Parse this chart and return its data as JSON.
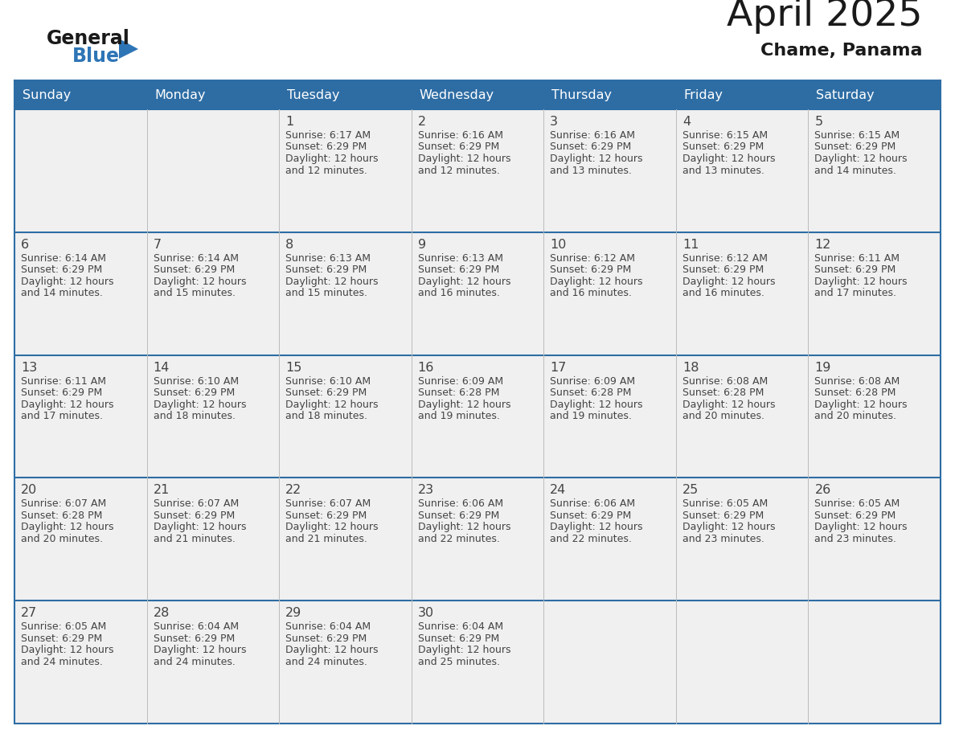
{
  "title": "April 2025",
  "subtitle": "Chame, Panama",
  "days_of_week": [
    "Sunday",
    "Monday",
    "Tuesday",
    "Wednesday",
    "Thursday",
    "Friday",
    "Saturday"
  ],
  "header_bg_color": "#2E6DA4",
  "header_text_color": "#FFFFFF",
  "cell_bg_color": "#F0F0F0",
  "divider_color": "#2E6DA4",
  "text_color": "#444444",
  "title_color": "#1a1a1a",
  "logo_general_color": "#1a1a1a",
  "logo_blue_color": "#2E75B6",
  "calendar_data": [
    [
      {
        "day": null,
        "sunrise": null,
        "sunset": null,
        "daylight": null
      },
      {
        "day": null,
        "sunrise": null,
        "sunset": null,
        "daylight": null
      },
      {
        "day": 1,
        "sunrise": "6:17 AM",
        "sunset": "6:29 PM",
        "daylight_l1": "12 hours",
        "daylight_l2": "and 12 minutes."
      },
      {
        "day": 2,
        "sunrise": "6:16 AM",
        "sunset": "6:29 PM",
        "daylight_l1": "12 hours",
        "daylight_l2": "and 12 minutes."
      },
      {
        "day": 3,
        "sunrise": "6:16 AM",
        "sunset": "6:29 PM",
        "daylight_l1": "12 hours",
        "daylight_l2": "and 13 minutes."
      },
      {
        "day": 4,
        "sunrise": "6:15 AM",
        "sunset": "6:29 PM",
        "daylight_l1": "12 hours",
        "daylight_l2": "and 13 minutes."
      },
      {
        "day": 5,
        "sunrise": "6:15 AM",
        "sunset": "6:29 PM",
        "daylight_l1": "12 hours",
        "daylight_l2": "and 14 minutes."
      }
    ],
    [
      {
        "day": 6,
        "sunrise": "6:14 AM",
        "sunset": "6:29 PM",
        "daylight_l1": "12 hours",
        "daylight_l2": "and 14 minutes."
      },
      {
        "day": 7,
        "sunrise": "6:14 AM",
        "sunset": "6:29 PM",
        "daylight_l1": "12 hours",
        "daylight_l2": "and 15 minutes."
      },
      {
        "day": 8,
        "sunrise": "6:13 AM",
        "sunset": "6:29 PM",
        "daylight_l1": "12 hours",
        "daylight_l2": "and 15 minutes."
      },
      {
        "day": 9,
        "sunrise": "6:13 AM",
        "sunset": "6:29 PM",
        "daylight_l1": "12 hours",
        "daylight_l2": "and 16 minutes."
      },
      {
        "day": 10,
        "sunrise": "6:12 AM",
        "sunset": "6:29 PM",
        "daylight_l1": "12 hours",
        "daylight_l2": "and 16 minutes."
      },
      {
        "day": 11,
        "sunrise": "6:12 AM",
        "sunset": "6:29 PM",
        "daylight_l1": "12 hours",
        "daylight_l2": "and 16 minutes."
      },
      {
        "day": 12,
        "sunrise": "6:11 AM",
        "sunset": "6:29 PM",
        "daylight_l1": "12 hours",
        "daylight_l2": "and 17 minutes."
      }
    ],
    [
      {
        "day": 13,
        "sunrise": "6:11 AM",
        "sunset": "6:29 PM",
        "daylight_l1": "12 hours",
        "daylight_l2": "and 17 minutes."
      },
      {
        "day": 14,
        "sunrise": "6:10 AM",
        "sunset": "6:29 PM",
        "daylight_l1": "12 hours",
        "daylight_l2": "and 18 minutes."
      },
      {
        "day": 15,
        "sunrise": "6:10 AM",
        "sunset": "6:29 PM",
        "daylight_l1": "12 hours",
        "daylight_l2": "and 18 minutes."
      },
      {
        "day": 16,
        "sunrise": "6:09 AM",
        "sunset": "6:28 PM",
        "daylight_l1": "12 hours",
        "daylight_l2": "and 19 minutes."
      },
      {
        "day": 17,
        "sunrise": "6:09 AM",
        "sunset": "6:28 PM",
        "daylight_l1": "12 hours",
        "daylight_l2": "and 19 minutes."
      },
      {
        "day": 18,
        "sunrise": "6:08 AM",
        "sunset": "6:28 PM",
        "daylight_l1": "12 hours",
        "daylight_l2": "and 20 minutes."
      },
      {
        "day": 19,
        "sunrise": "6:08 AM",
        "sunset": "6:28 PM",
        "daylight_l1": "12 hours",
        "daylight_l2": "and 20 minutes."
      }
    ],
    [
      {
        "day": 20,
        "sunrise": "6:07 AM",
        "sunset": "6:28 PM",
        "daylight_l1": "12 hours",
        "daylight_l2": "and 20 minutes."
      },
      {
        "day": 21,
        "sunrise": "6:07 AM",
        "sunset": "6:29 PM",
        "daylight_l1": "12 hours",
        "daylight_l2": "and 21 minutes."
      },
      {
        "day": 22,
        "sunrise": "6:07 AM",
        "sunset": "6:29 PM",
        "daylight_l1": "12 hours",
        "daylight_l2": "and 21 minutes."
      },
      {
        "day": 23,
        "sunrise": "6:06 AM",
        "sunset": "6:29 PM",
        "daylight_l1": "12 hours",
        "daylight_l2": "and 22 minutes."
      },
      {
        "day": 24,
        "sunrise": "6:06 AM",
        "sunset": "6:29 PM",
        "daylight_l1": "12 hours",
        "daylight_l2": "and 22 minutes."
      },
      {
        "day": 25,
        "sunrise": "6:05 AM",
        "sunset": "6:29 PM",
        "daylight_l1": "12 hours",
        "daylight_l2": "and 23 minutes."
      },
      {
        "day": 26,
        "sunrise": "6:05 AM",
        "sunset": "6:29 PM",
        "daylight_l1": "12 hours",
        "daylight_l2": "and 23 minutes."
      }
    ],
    [
      {
        "day": 27,
        "sunrise": "6:05 AM",
        "sunset": "6:29 PM",
        "daylight_l1": "12 hours",
        "daylight_l2": "and 24 minutes."
      },
      {
        "day": 28,
        "sunrise": "6:04 AM",
        "sunset": "6:29 PM",
        "daylight_l1": "12 hours",
        "daylight_l2": "and 24 minutes."
      },
      {
        "day": 29,
        "sunrise": "6:04 AM",
        "sunset": "6:29 PM",
        "daylight_l1": "12 hours",
        "daylight_l2": "and 24 minutes."
      },
      {
        "day": 30,
        "sunrise": "6:04 AM",
        "sunset": "6:29 PM",
        "daylight_l1": "12 hours",
        "daylight_l2": "and 25 minutes."
      },
      {
        "day": null,
        "sunrise": null,
        "sunset": null,
        "daylight_l1": null,
        "daylight_l2": null
      },
      {
        "day": null,
        "sunrise": null,
        "sunset": null,
        "daylight_l1": null,
        "daylight_l2": null
      },
      {
        "day": null,
        "sunrise": null,
        "sunset": null,
        "daylight_l1": null,
        "daylight_l2": null
      }
    ]
  ]
}
